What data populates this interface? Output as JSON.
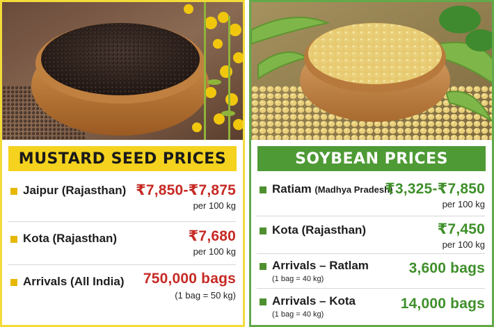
{
  "mustard": {
    "title": "MUSTARD SEED PRICES",
    "rows": [
      {
        "label": "Jaipur (Rajasthan)",
        "price": "₹7,850-₹7,875",
        "unit": "per 100 kg"
      },
      {
        "label": "Kota (Rajasthan)",
        "price": "₹7,680",
        "unit": "per 100 kg"
      },
      {
        "label": "Arrivals (All India)",
        "price": "750,000 bags",
        "unit": "(1 bag = 50 kg)"
      }
    ]
  },
  "soybean": {
    "title": "SOYBEAN PRICES",
    "rows": [
      {
        "label": "Ratiam",
        "label_sub": "(Madhya Pradesh)",
        "price": "₹3,325-₹7,850",
        "unit": "per 100 kg"
      },
      {
        "label": "Kota (Rajasthan)",
        "price": "₹7,450",
        "unit": "per 100 kg"
      },
      {
        "label": "Arrivals – Ratlam",
        "note": "(1 bag = 40 kg)",
        "price": "3,600 bags"
      },
      {
        "label": "Arrivals – Kota",
        "note": "(1 bag = 40 kg)",
        "price": "14,000 bags"
      }
    ]
  },
  "colors": {
    "mustard_accent": "#f4d21e",
    "mustard_price": "#c62a24",
    "soy_accent": "#4e9a35",
    "soy_price": "#3f8f2a"
  }
}
